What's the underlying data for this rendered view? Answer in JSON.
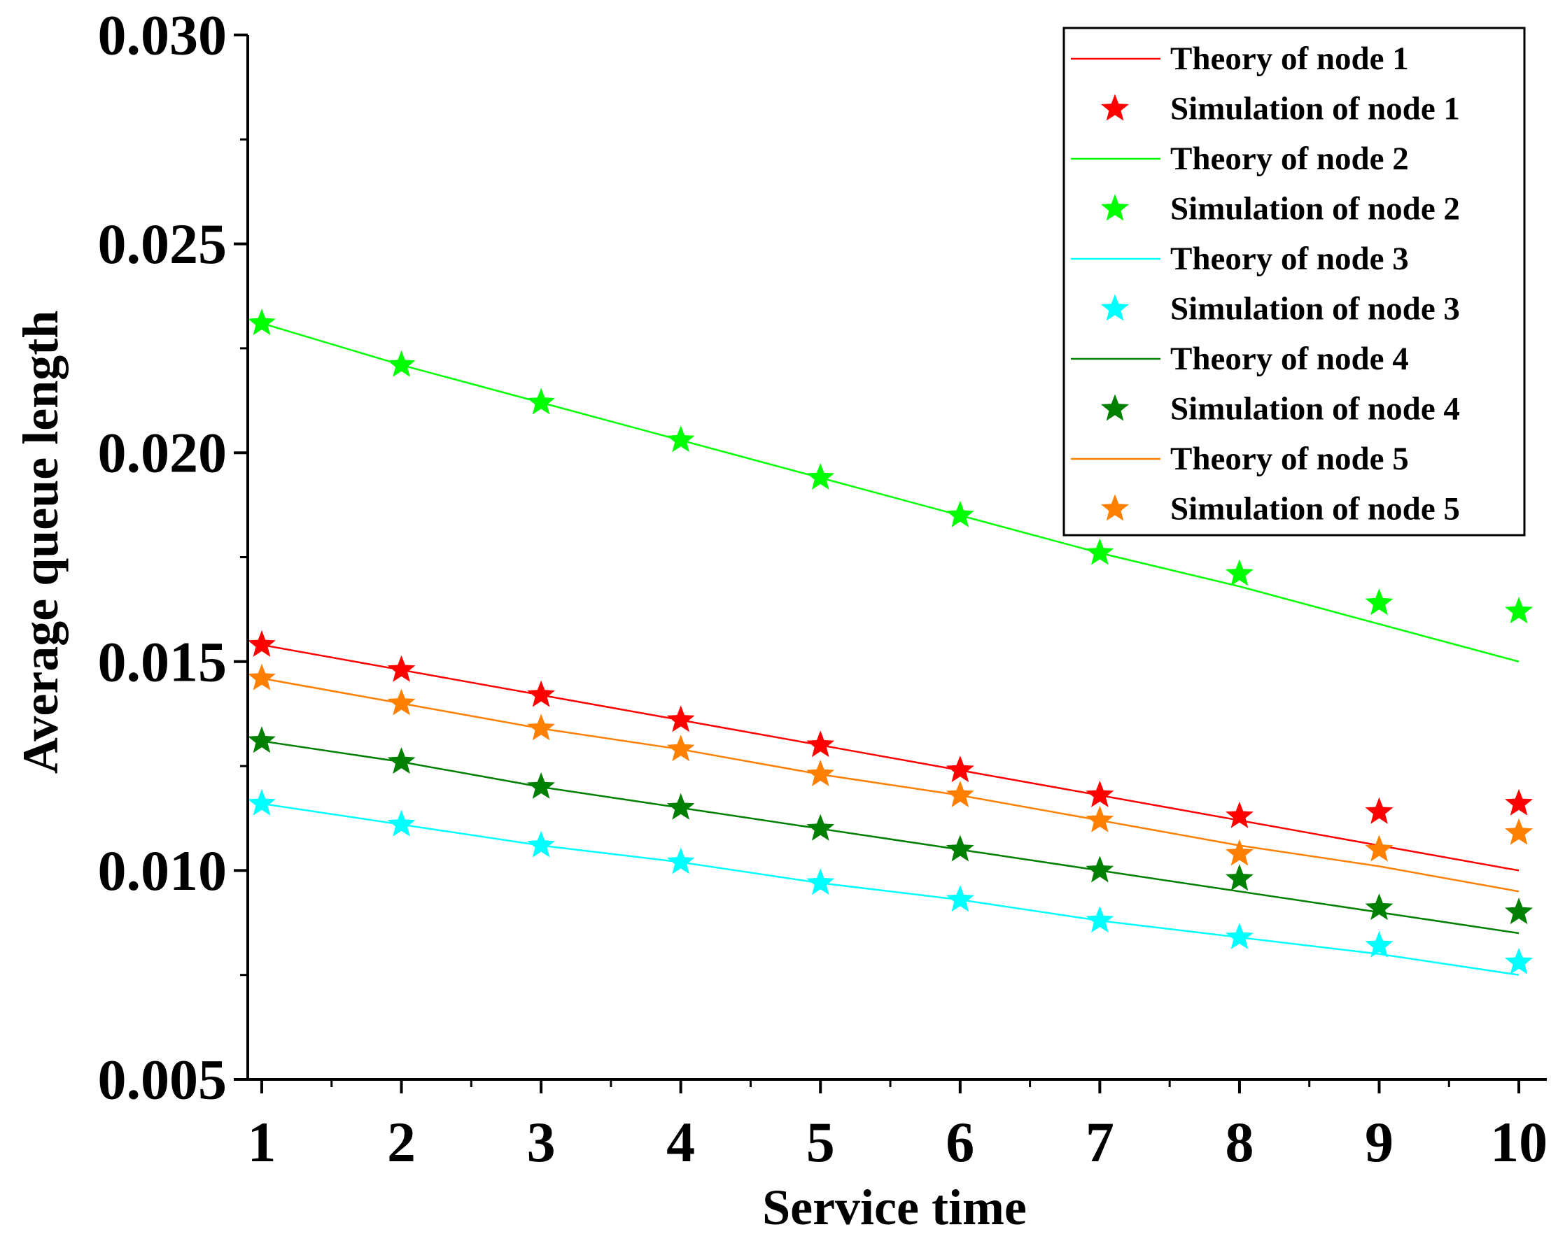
{
  "chart_data": {
    "type": "line",
    "title": "",
    "xlabel": "Service time",
    "ylabel": "Average queue length",
    "xlim": [
      0.9,
      10.2
    ],
    "ylim": [
      0.005,
      0.03
    ],
    "x_ticks": [
      1,
      2,
      3,
      4,
      5,
      6,
      7,
      8,
      9,
      10
    ],
    "x_tick_labels": [
      "1",
      "2",
      "3",
      "4",
      "5",
      "6",
      "7",
      "8",
      "9",
      "10"
    ],
    "y_ticks": [
      0.005,
      0.01,
      0.015,
      0.02,
      0.025,
      0.03
    ],
    "y_tick_labels": [
      "0.005",
      "0.010",
      "0.015",
      "0.020",
      "0.025",
      "0.030"
    ],
    "grid": false,
    "legend_position": "top-right",
    "x": [
      1,
      2,
      3,
      4,
      5,
      6,
      7,
      8,
      9,
      10
    ],
    "series": [
      {
        "name": "Theory of node 1",
        "kind": "line",
        "color": "#ff0000",
        "values": [
          0.0154,
          0.0148,
          0.0142,
          0.0136,
          0.013,
          0.0124,
          0.0118,
          0.0112,
          0.0106,
          0.01
        ]
      },
      {
        "name": "Simulation of node 1",
        "kind": "marker",
        "color": "#ff0000",
        "values": [
          0.0154,
          0.0148,
          0.0142,
          0.0136,
          0.013,
          0.0124,
          0.0118,
          0.0113,
          0.0114,
          0.0116
        ]
      },
      {
        "name": "Theory of node 2",
        "kind": "line",
        "color": "#00ff00",
        "values": [
          0.0231,
          0.0221,
          0.0212,
          0.0203,
          0.0194,
          0.0185,
          0.0176,
          0.0168,
          0.0159,
          0.015
        ]
      },
      {
        "name": "Simulation of node 2",
        "kind": "marker",
        "color": "#00ff00",
        "values": [
          0.0231,
          0.0221,
          0.0212,
          0.0203,
          0.0194,
          0.0185,
          0.0176,
          0.0171,
          0.0164,
          0.0162
        ]
      },
      {
        "name": "Theory of node 3",
        "kind": "line",
        "color": "#00ffff",
        "values": [
          0.0116,
          0.0111,
          0.0106,
          0.0102,
          0.0097,
          0.0093,
          0.0088,
          0.0084,
          0.008,
          0.0075
        ]
      },
      {
        "name": "Simulation of node 3",
        "kind": "marker",
        "color": "#00ffff",
        "values": [
          0.0116,
          0.0111,
          0.0106,
          0.0102,
          0.0097,
          0.0093,
          0.0088,
          0.0084,
          0.0082,
          0.0078
        ]
      },
      {
        "name": "Theory of node 4",
        "kind": "line",
        "color": "#008000",
        "values": [
          0.0131,
          0.0126,
          0.012,
          0.0115,
          0.011,
          0.0105,
          0.01,
          0.0095,
          0.009,
          0.0085
        ]
      },
      {
        "name": "Simulation of node 4",
        "kind": "marker",
        "color": "#008000",
        "values": [
          0.0131,
          0.0126,
          0.012,
          0.0115,
          0.011,
          0.0105,
          0.01,
          0.0098,
          0.0091,
          0.009
        ]
      },
      {
        "name": "Theory of node 5",
        "kind": "line",
        "color": "#ff8000",
        "values": [
          0.0146,
          0.014,
          0.0134,
          0.0129,
          0.0123,
          0.0118,
          0.0112,
          0.0106,
          0.0101,
          0.0095
        ]
      },
      {
        "name": "Simulation of node 5",
        "kind": "marker",
        "color": "#ff8000",
        "values": [
          0.0146,
          0.014,
          0.0134,
          0.0129,
          0.0123,
          0.0118,
          0.0112,
          0.0104,
          0.0105,
          0.0109
        ]
      }
    ]
  }
}
